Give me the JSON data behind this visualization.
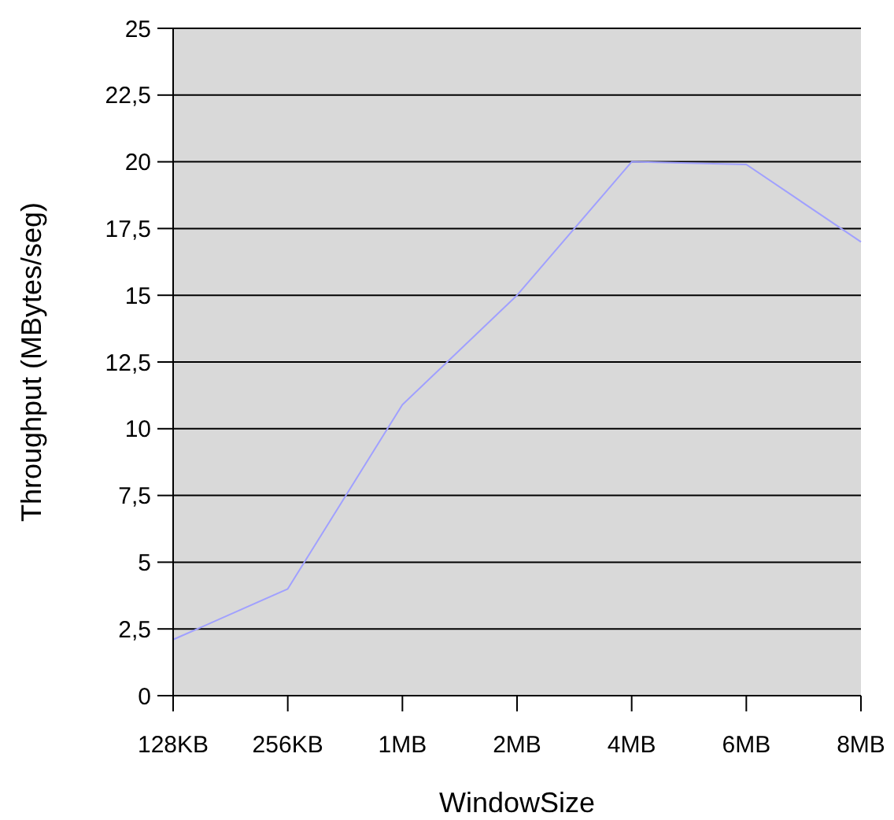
{
  "chart_data": {
    "type": "line",
    "xlabel": "WindowSize",
    "ylabel": "Throughput (MBytes/seg)",
    "categories": [
      "128KB",
      "256KB",
      "1MB",
      "2MB",
      "4MB",
      "6MB",
      "8MB"
    ],
    "series": [
      {
        "color": "#a0a0ff",
        "values": [
          2.1,
          4.0,
          10.9,
          15.0,
          20.0,
          19.9,
          17.0
        ]
      }
    ],
    "ylim": [
      0,
      25
    ],
    "yticks": [
      0,
      {
        "value": 2.5,
        "label": "2,5"
      },
      5,
      {
        "value": 7.5,
        "label": "7,5"
      },
      10,
      {
        "value": 12.5,
        "label": "12,5"
      },
      15,
      {
        "value": 17.5,
        "label": "17,5"
      },
      20,
      {
        "value": 22.5,
        "label": "22,5"
      },
      25
    ],
    "grid": "y",
    "marker": "none",
    "line_style": "solid"
  }
}
